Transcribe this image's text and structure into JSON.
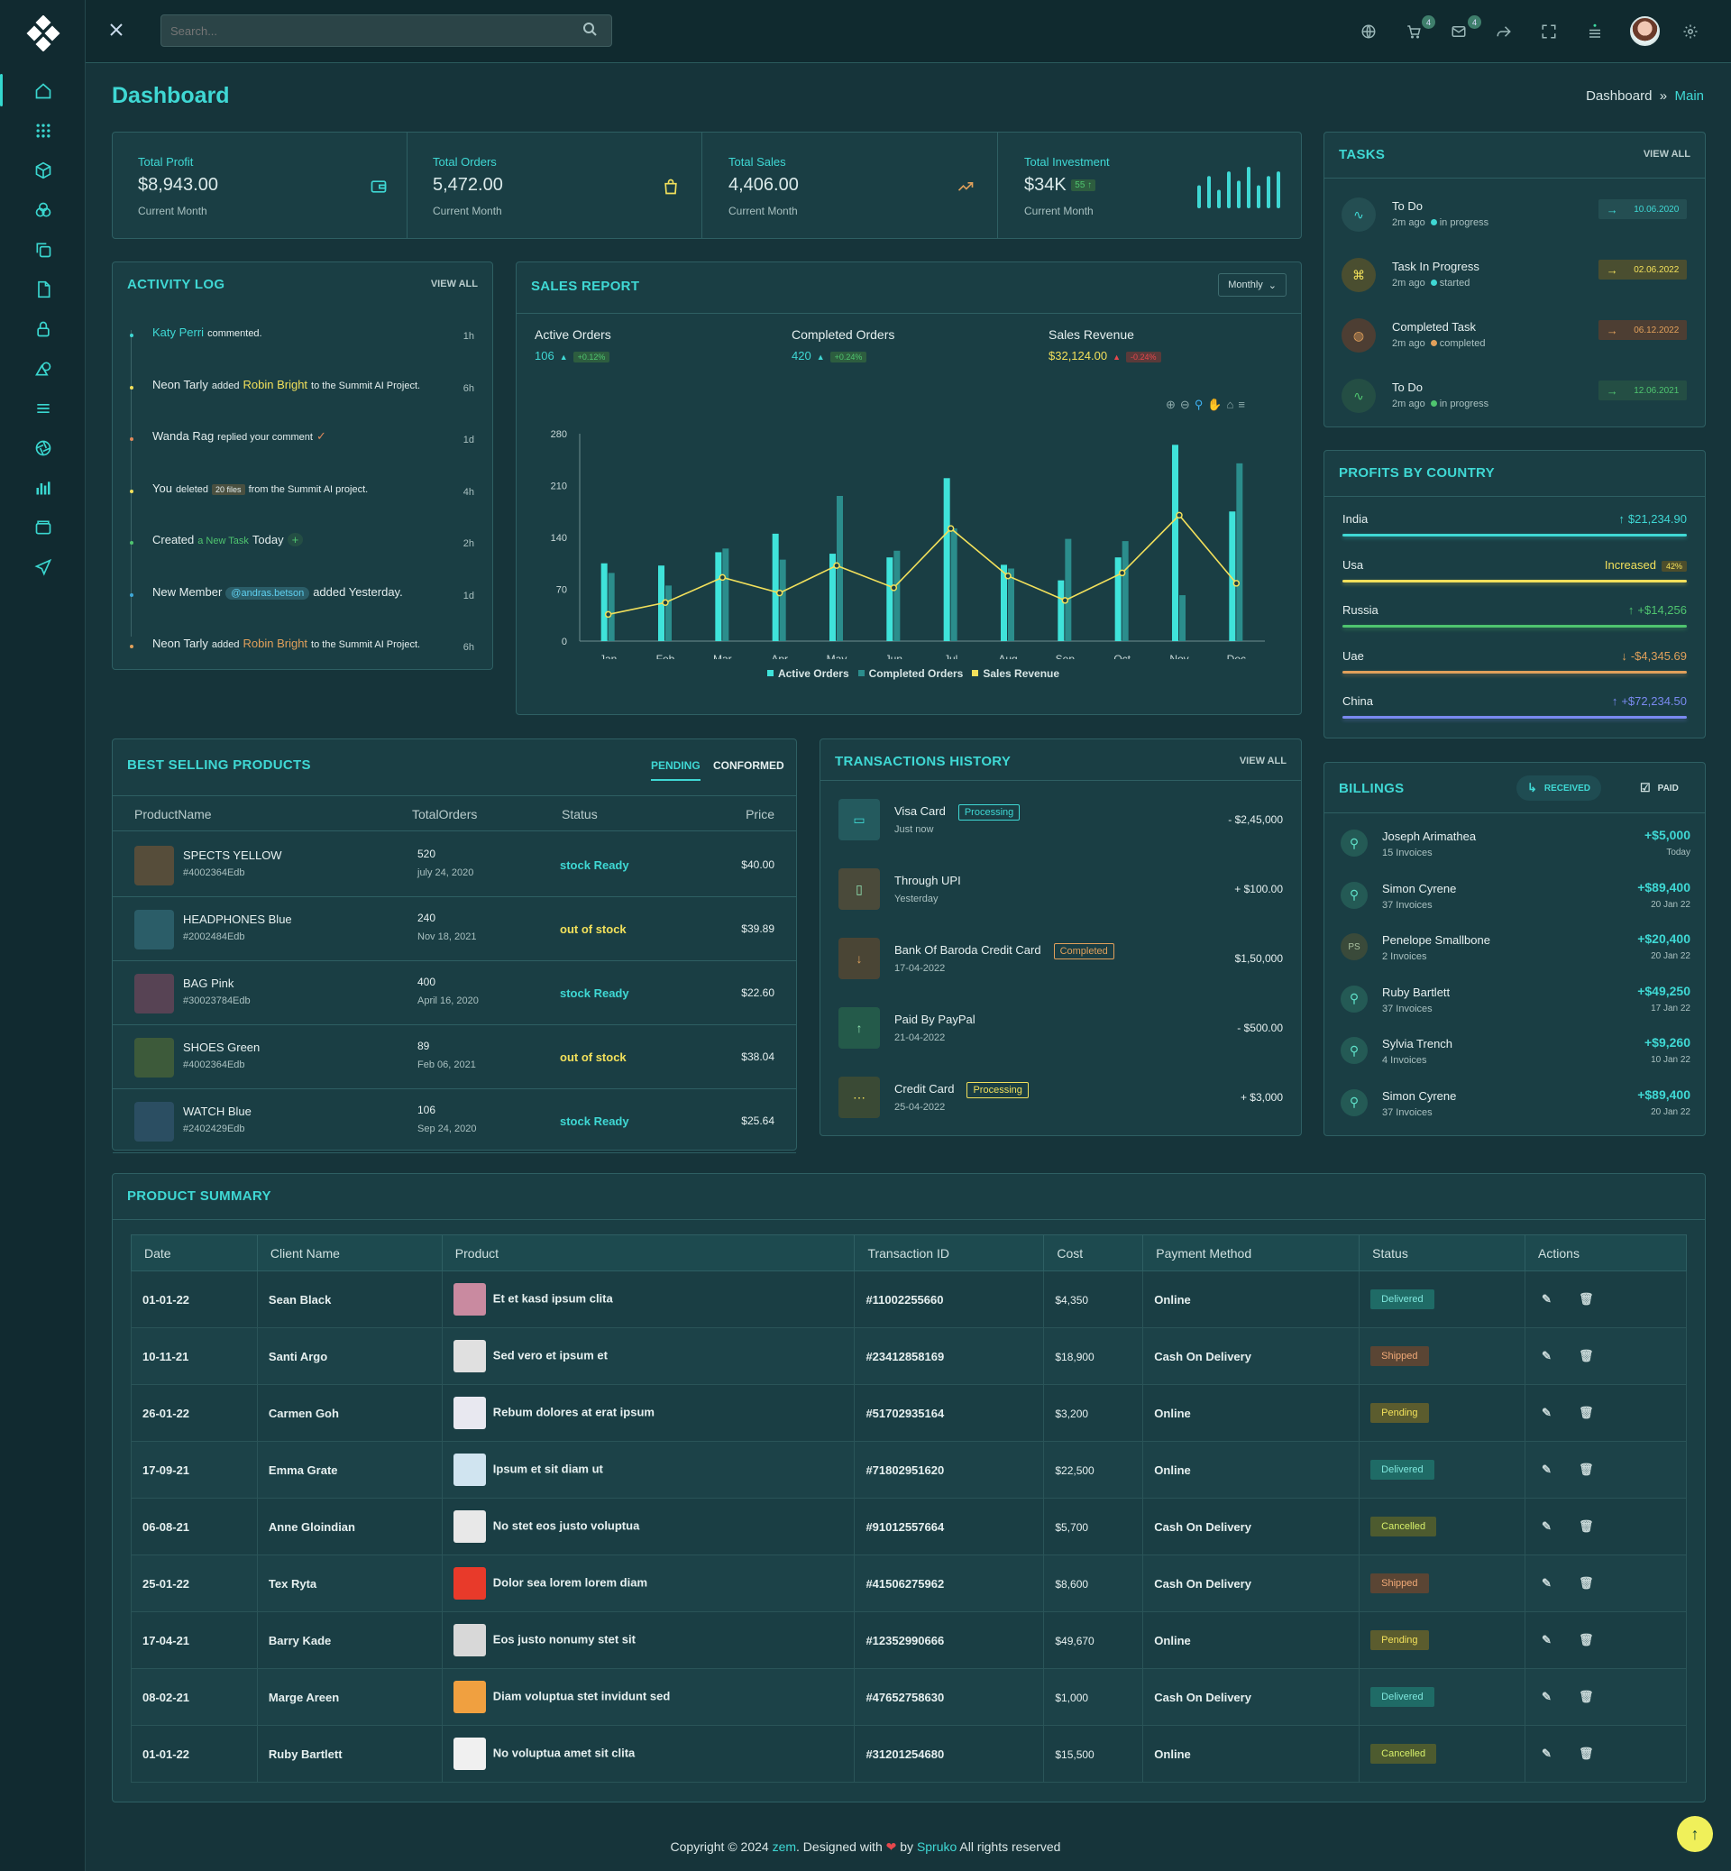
{
  "header": {
    "search_placeholder": "Search...",
    "cart_count": "4",
    "mail_count": "4"
  },
  "page": {
    "title": "Dashboard",
    "breadcrumb": [
      "Dashboard",
      "»",
      "Main"
    ]
  },
  "stats": [
    {
      "label": "Total Profit",
      "value": "$8,943.00",
      "sub": "Current Month",
      "icon": "wallet-icon"
    },
    {
      "label": "Total Orders",
      "value": "5,472.00",
      "sub": "Current Month",
      "icon": "shopping-bag-icon"
    },
    {
      "label": "Total Sales",
      "value": "4,406.00",
      "sub": "Current Month",
      "icon": "trending-up-icon"
    },
    {
      "label": "Total Investment",
      "value": "$34K",
      "badge": "55",
      "sub": "Current Month",
      "icon": "bar-sparkline-icon",
      "spark": [
        5,
        7,
        4,
        8,
        6,
        9,
        5,
        7,
        8
      ]
    }
  ],
  "activity": {
    "title": "ACTIVITY LOG",
    "view_all": "VIEW ALL",
    "items": [
      {
        "a": "Katy Perri",
        "b": "commented.",
        "c": "",
        "d": "",
        "time": "1h",
        "color": "#3fd8d4"
      },
      {
        "a": "Neon Tarly",
        "b": "added",
        "c": "Robin Bright",
        "d": "to the Summit AI Project.",
        "time": "6h",
        "color": "#f2e05b"
      },
      {
        "a": "Wanda Rag",
        "b": "replied your comment",
        "c": "✓",
        "d": "",
        "time": "1d",
        "color": "#e0895b"
      },
      {
        "a": "You",
        "b": "deleted",
        "c": "20 files",
        "d": "from the Summit AI project.",
        "time": "4h",
        "color": "#f2e05b"
      },
      {
        "a": "Created",
        "b": "a New Task",
        "c": "Today",
        "d": "+",
        "time": "2h",
        "color": "#4fc46f"
      },
      {
        "a": "New Member",
        "b": "@andras.betson",
        "c": "added Yesterday.",
        "d": "",
        "time": "1d",
        "color": "#3fa8d8"
      },
      {
        "a": "Neon Tarly",
        "b": "added",
        "c": "Robin Bright",
        "d": "to the Summit AI Project.",
        "time": "6h",
        "color": "#e0a05b"
      }
    ]
  },
  "sales": {
    "title": "SALES REPORT",
    "period": "Monthly",
    "kpis": [
      {
        "label": "Active Orders",
        "value": "106",
        "change": "+0.12%",
        "color": "#3fd8d4"
      },
      {
        "label": "Completed Orders",
        "value": "420",
        "change": "+0.24%",
        "color": "#3fd8d4"
      },
      {
        "label": "Sales Revenue",
        "value": "$32,124.00",
        "change": "-0.24%",
        "color": "#f2e05b"
      }
    ]
  },
  "chart_data": {
    "type": "bar",
    "categories": [
      "Jan",
      "Feb",
      "Mar",
      "Apr",
      "May",
      "Jun",
      "Jul",
      "Aug",
      "Sep",
      "Oct",
      "Nov",
      "Dec"
    ],
    "ylim": [
      0,
      280
    ],
    "yticks": [
      0,
      70,
      140,
      210,
      280
    ],
    "series": [
      {
        "name": "Active Orders",
        "type": "bar",
        "color": "#3fe3da",
        "values": [
          105,
          102,
          120,
          145,
          118,
          113,
          220,
          103,
          82,
          113,
          265,
          175
        ]
      },
      {
        "name": "Completed Orders",
        "type": "bar",
        "color": "#2b8d8c",
        "values": [
          92,
          75,
          125,
          110,
          196,
          122,
          152,
          98,
          138,
          135,
          62,
          240
        ]
      },
      {
        "name": "Sales Revenue",
        "type": "line",
        "color": "#f2e05b",
        "values": [
          36,
          52,
          86,
          65,
          102,
          72,
          152,
          88,
          55,
          92,
          170,
          78
        ]
      }
    ],
    "legend": "bottom"
  },
  "best": {
    "title": "BEST SELLING PRODUCTS",
    "tabs": [
      "PENDING",
      "CONFORMED"
    ],
    "headers": [
      "ProductName",
      "TotalOrders",
      "Status",
      "Price"
    ],
    "rows": [
      {
        "name": "SPECTS YELLOW",
        "id": "#4002364Edb",
        "orders": "520",
        "date": "july 24, 2020",
        "status": "stock Ready",
        "price": "$40.00",
        "scolor": "#3fd8d4",
        "img": "#564d3a"
      },
      {
        "name": "HEADPHONES Blue",
        "id": "#2002484Edb",
        "orders": "240",
        "date": "Nov 18, 2021",
        "status": "out of stock",
        "price": "$39.89",
        "scolor": "#f2e05b",
        "img": "#2b5d68"
      },
      {
        "name": "BAG Pink",
        "id": "#30023784Edb",
        "orders": "400",
        "date": "April 16, 2020",
        "status": "stock Ready",
        "price": "$22.60",
        "scolor": "#3fd8d4",
        "img": "#574354"
      },
      {
        "name": "SHOES Green",
        "id": "#4002364Edb",
        "orders": "89",
        "date": "Feb 06, 2021",
        "status": "out of stock",
        "price": "$38.04",
        "scolor": "#f2e05b",
        "img": "#3d5a3a"
      },
      {
        "name": "WATCH Blue",
        "id": "#2402429Edb",
        "orders": "106",
        "date": "Sep 24, 2020",
        "status": "stock Ready",
        "price": "$25.64",
        "scolor": "#3fd8d4",
        "img": "#2b4e62"
      }
    ]
  },
  "transactions": {
    "title": "TRANSACTIONS HISTORY",
    "view_all": "VIEW ALL",
    "rows": [
      {
        "name": "Visa Card",
        "sub": "Just now",
        "badge": "Processing",
        "amount": "- $2,45,000",
        "bcolor": "#3fd8d4",
        "icolor": "#245a5e",
        "iglyph": "▭"
      },
      {
        "name": "Through UPI",
        "sub": "Yesterday",
        "badge": "",
        "amount": "+ $100.00",
        "bcolor": "",
        "icolor": "#4a4a3a",
        "iglyph": "▯"
      },
      {
        "name": "Bank Of Baroda Credit Card",
        "sub": "17-04-2022",
        "badge": "Completed",
        "amount": "$1,50,000",
        "bcolor": "#e0a05b",
        "icolor": "#4a4535",
        "iglyph": "↓"
      },
      {
        "name": "Paid By PayPal",
        "sub": "21-04-2022",
        "badge": "",
        "amount": "- $500.00",
        "bcolor": "",
        "icolor": "#245a4a",
        "iglyph": "↑"
      },
      {
        "name": "Credit Card",
        "sub": "25-04-2022",
        "badge": "Processing",
        "amount": "+ $3,000",
        "bcolor": "#f2e05b",
        "icolor": "#3a4a35",
        "iglyph": "⋯"
      }
    ]
  },
  "tasks": {
    "title": "TASKS",
    "view_all": "VIEW ALL",
    "items": [
      {
        "name": "To Do",
        "time": "2m ago",
        "status": "in progress",
        "date": "10.06.2020",
        "color": "#3fd8d4",
        "icon_bg": "#244e52",
        "glyph": "∿",
        "dot": "#3fd8d4"
      },
      {
        "name": "Task In Progress",
        "time": "2m ago",
        "status": "started",
        "date": "02.06.2022",
        "color": "#f2e05b",
        "icon_bg": "#4a4e30",
        "glyph": "⌘",
        "dot": "#3fd8d4"
      },
      {
        "name": "Completed Task",
        "time": "2m ago",
        "status": "completed",
        "date": "06.12.2022",
        "color": "#e0a05b",
        "icon_bg": "#4d3e33",
        "glyph": "◍",
        "dot": "#e0a05b"
      },
      {
        "name": "To Do",
        "time": "2m ago",
        "status": "in progress",
        "date": "12.06.2021",
        "color": "#4fc46f",
        "icon_bg": "#244e44",
        "glyph": "∿",
        "dot": "#4fc46f"
      }
    ]
  },
  "profits": {
    "title": "PROFITS BY COUNTRY",
    "items": [
      {
        "name": "India",
        "value": "$21,234.90",
        "arrow": "↑",
        "color": "#3fd8d4",
        "bar": "#3fd8d4"
      },
      {
        "name": "Usa",
        "value": "Increased",
        "badge": "42%",
        "arrow": "",
        "color": "#f2e05b",
        "bar": "#f2e05b"
      },
      {
        "name": "Russia",
        "value": "+$14,256",
        "arrow": "↑",
        "color": "#4fc46f",
        "bar": "#4fc46f"
      },
      {
        "name": "Uae",
        "value": "-$4,345.69",
        "arrow": "↓",
        "color": "#e0a05b",
        "bar": "#e0a05b"
      },
      {
        "name": "China",
        "value": "+$72,234.50",
        "arrow": "↑",
        "color": "#7a8af0",
        "bar": "#7a8af0"
      }
    ]
  },
  "billings": {
    "title": "BILLINGS",
    "tabs": [
      "RECEIVED",
      "PAID"
    ],
    "items": [
      {
        "name": "Joseph Arimathea",
        "sub": "15 Invoices",
        "amount": "+$5,000",
        "date": "Today",
        "initials": ""
      },
      {
        "name": "Simon Cyrene",
        "sub": "37 Invoices",
        "amount": "+$89,400",
        "date": "20 Jan 22",
        "initials": ""
      },
      {
        "name": "Penelope Smallbone",
        "sub": "2 Invoices",
        "amount": "+$20,400",
        "date": "20 Jan 22",
        "initials": "PS"
      },
      {
        "name": "Ruby Bartlett",
        "sub": "37 Invoices",
        "amount": "+$49,250",
        "date": "17 Jan 22",
        "initials": ""
      },
      {
        "name": "Sylvia Trench",
        "sub": "4 Invoices",
        "amount": "+$9,260",
        "date": "10 Jan 22",
        "initials": ""
      },
      {
        "name": "Simon Cyrene",
        "sub": "37 Invoices",
        "amount": "+$89,400",
        "date": "20 Jan 22",
        "initials": ""
      }
    ]
  },
  "summary": {
    "title": "PRODUCT SUMMARY",
    "headers": [
      "Date",
      "Client Name",
      "Product",
      "Transaction ID",
      "Cost",
      "Payment Method",
      "Status",
      "Actions"
    ],
    "rows": [
      [
        "01-01-22",
        "Sean Black",
        "Et et kasd ipsum clita",
        "#11002255660",
        "$4,350",
        "Online",
        "Delivered"
      ],
      [
        "10-11-21",
        "Santi Argo",
        "Sed vero et ipsum et",
        "#23412858169",
        "$18,900",
        "Cash On Delivery",
        "Shipped"
      ],
      [
        "26-01-22",
        "Carmen Goh",
        "Rebum dolores at erat ipsum",
        "#51702935164",
        "$3,200",
        "Online",
        "Pending"
      ],
      [
        "17-09-21",
        "Emma Grate",
        "Ipsum et sit diam ut",
        "#71802951620",
        "$22,500",
        "Online",
        "Delivered"
      ],
      [
        "06-08-21",
        "Anne Gloindian",
        "No stet eos justo voluptua",
        "#91012557664",
        "$5,700",
        "Cash On Delivery",
        "Cancelled"
      ],
      [
        "25-01-22",
        "Tex Ryta",
        "Dolor sea lorem lorem diam",
        "#41506275962",
        "$8,600",
        "Cash On Delivery",
        "Shipped"
      ],
      [
        "17-04-21",
        "Barry Kade",
        "Eos justo nonumy stet sit",
        "#12352990666",
        "$49,670",
        "Online",
        "Pending"
      ],
      [
        "08-02-21",
        "Marge Areen",
        "Diam voluptua stet invidunt sed",
        "#47652758630",
        "$1,000",
        "Cash On Delivery",
        "Delivered"
      ],
      [
        "01-01-22",
        "Ruby Bartlett",
        "No voluptua amet sit clita",
        "#31201254680",
        "$15,500",
        "Online",
        "Cancelled"
      ]
    ],
    "status_colors": {
      "Delivered": [
        "#1f6b66",
        "#7fe8de"
      ],
      "Shipped": [
        "#5a4534",
        "#f0a977"
      ],
      "Pending": [
        "#5b5c2e",
        "#f2e05b"
      ],
      "Cancelled": [
        "#4d5b2f",
        "#d7ef6a"
      ]
    }
  },
  "footer": {
    "pre": "Copyright © 2024",
    "brand": "zem",
    "mid": ". Designed with",
    "heart": "❤",
    "by": "by",
    "author": "Spruko",
    "post": "All rights reserved"
  }
}
